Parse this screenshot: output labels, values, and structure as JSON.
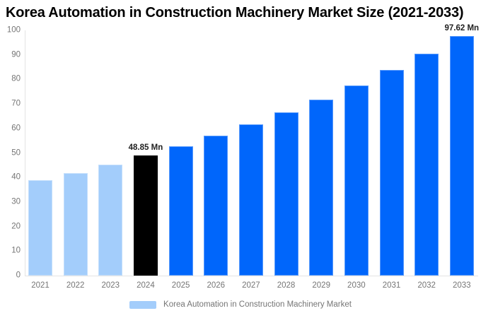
{
  "chart_data": {
    "type": "bar",
    "title": "Korea Automation in Construction Machinery Market Size (2021-2033)",
    "unit": "Mn",
    "categories": [
      "2021",
      "2022",
      "2023",
      "2024",
      "2025",
      "2026",
      "2027",
      "2028",
      "2029",
      "2030",
      "2031",
      "2032",
      "2033"
    ],
    "values": [
      38.78,
      41.88,
      45.23,
      48.85,
      52.76,
      56.98,
      61.54,
      66.46,
      71.78,
      77.52,
      83.72,
      90.42,
      97.62
    ],
    "bar_roles": [
      "historical",
      "historical",
      "historical",
      "highlight",
      "forecast",
      "forecast",
      "forecast",
      "forecast",
      "forecast",
      "forecast",
      "forecast",
      "forecast",
      "forecast"
    ],
    "annotations": [
      {
        "category": "2024",
        "text": "48.85 Mn"
      },
      {
        "category": "2033",
        "text": "97.62 Mn"
      }
    ],
    "xlabel": "",
    "ylabel": "",
    "ylim": [
      0,
      100
    ],
    "yticks": [
      0,
      10,
      20,
      30,
      40,
      50,
      60,
      70,
      80,
      90,
      100
    ],
    "grid": false,
    "legend": {
      "label": "Korea Automation in Construction Machinery Market",
      "position": "bottom"
    },
    "colors": {
      "historical": "#A3CDFB",
      "highlight": "#000000",
      "forecast": "#0066FB",
      "axis_text": "#757575",
      "axis_line": "#E3E3E3",
      "annotation_text": "#1F1F1F",
      "legend_text": "#757575",
      "title_text": "#000000",
      "background": "#FFFFFF"
    }
  }
}
